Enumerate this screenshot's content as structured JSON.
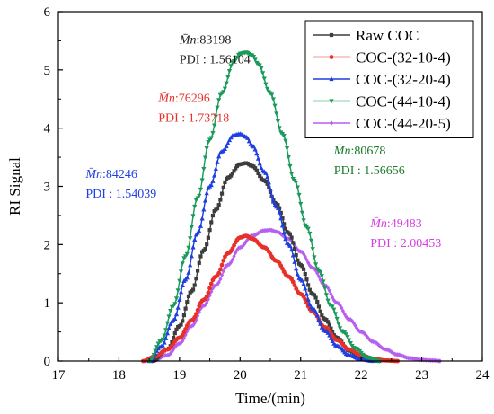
{
  "chart_data": {
    "type": "line",
    "xlabel": "Time/(min)",
    "ylabel": "RI Signal",
    "xlim": [
      17,
      24
    ],
    "ylim": [
      0,
      6
    ],
    "x_ticks": [
      17,
      18,
      19,
      20,
      21,
      22,
      23,
      24
    ],
    "y_ticks": [
      0,
      1,
      2,
      3,
      4,
      5,
      6
    ],
    "grid": false,
    "legend_position": "top-right",
    "series": [
      {
        "name": "Raw COC",
        "color": "#3d3d3d",
        "marker": "square",
        "x": [
          18.55,
          18.8,
          19.0,
          19.2,
          19.4,
          19.6,
          19.8,
          20.0,
          20.1,
          20.2,
          20.4,
          20.6,
          20.8,
          21.0,
          21.2,
          21.4,
          21.6,
          21.8,
          22.0,
          22.2,
          22.3
        ],
        "y": [
          0.0,
          0.2,
          0.6,
          1.2,
          1.9,
          2.6,
          3.15,
          3.38,
          3.4,
          3.35,
          3.1,
          2.7,
          2.2,
          1.65,
          1.15,
          0.72,
          0.4,
          0.18,
          0.06,
          0.01,
          0.0
        ]
      },
      {
        "name": "COC-(32-10-4)",
        "color": "#e8302a",
        "marker": "circle",
        "x": [
          18.4,
          18.6,
          18.8,
          19.0,
          19.2,
          19.4,
          19.6,
          19.8,
          20.0,
          20.1,
          20.2,
          20.4,
          20.6,
          20.8,
          21.0,
          21.2,
          21.4,
          21.6,
          21.8,
          22.0,
          22.2,
          22.4,
          22.6
        ],
        "y": [
          0.0,
          0.08,
          0.2,
          0.4,
          0.7,
          1.05,
          1.45,
          1.85,
          2.12,
          2.15,
          2.1,
          1.95,
          1.72,
          1.45,
          1.15,
          0.85,
          0.58,
          0.36,
          0.2,
          0.1,
          0.04,
          0.01,
          0.0
        ]
      },
      {
        "name": "COC-(32-20-4)",
        "color": "#1f3fe0",
        "marker": "triangle-up",
        "x": [
          18.5,
          18.7,
          18.9,
          19.1,
          19.3,
          19.5,
          19.7,
          19.9,
          20.0,
          20.1,
          20.2,
          20.4,
          20.6,
          20.8,
          21.0,
          21.2,
          21.4,
          21.6,
          21.8,
          22.0,
          22.2
        ],
        "y": [
          0.0,
          0.25,
          0.7,
          1.4,
          2.2,
          3.0,
          3.6,
          3.88,
          3.9,
          3.85,
          3.7,
          3.25,
          2.65,
          2.0,
          1.4,
          0.9,
          0.52,
          0.26,
          0.1,
          0.03,
          0.0
        ]
      },
      {
        "name": "COC-(44-10-4)",
        "color": "#1a9a5a",
        "marker": "triangle-down",
        "x": [
          18.5,
          18.7,
          18.9,
          19.1,
          19.3,
          19.5,
          19.7,
          19.9,
          20.0,
          20.1,
          20.2,
          20.3,
          20.5,
          20.7,
          20.9,
          21.1,
          21.3,
          21.5,
          21.7,
          21.9,
          22.1,
          22.3
        ],
        "y": [
          0.0,
          0.35,
          0.95,
          1.8,
          2.8,
          3.8,
          4.6,
          5.15,
          5.28,
          5.3,
          5.25,
          5.1,
          4.6,
          3.9,
          3.1,
          2.3,
          1.55,
          0.95,
          0.5,
          0.22,
          0.06,
          0.0
        ]
      },
      {
        "name": "COC-(44-20-5)",
        "color": "#b65ff0",
        "marker": "diamond",
        "x": [
          18.55,
          18.8,
          19.0,
          19.2,
          19.4,
          19.6,
          19.8,
          20.0,
          20.2,
          20.4,
          20.5,
          20.6,
          20.8,
          21.0,
          21.2,
          21.4,
          21.6,
          21.8,
          22.0,
          22.2,
          22.4,
          22.6,
          22.8,
          23.0,
          23.2,
          23.3
        ],
        "y": [
          0.0,
          0.1,
          0.3,
          0.6,
          0.95,
          1.3,
          1.65,
          1.95,
          2.15,
          2.24,
          2.25,
          2.22,
          2.1,
          1.88,
          1.6,
          1.3,
          1.0,
          0.72,
          0.5,
          0.33,
          0.2,
          0.11,
          0.05,
          0.02,
          0.01,
          0.0
        ]
      }
    ],
    "annotations": [
      {
        "mn_label": "M̄n",
        "mn_value": ":83198",
        "pdi": "PDI : 1.56104",
        "color": "#1a1a1a",
        "at": [
          19.0,
          5.45
        ]
      },
      {
        "mn_label": "M̄n",
        "mn_value": ":76296",
        "pdi": "PDI : 1.73718",
        "color": "#e8302a",
        "at": [
          18.65,
          4.45
        ]
      },
      {
        "mn_label": "M̄n",
        "mn_value": ":84246",
        "pdi": "PDI : 1.54039",
        "color": "#1f3fe0",
        "at": [
          17.45,
          3.15
        ]
      },
      {
        "mn_label": "M̄n",
        "mn_value": ":80678",
        "pdi": "PDI : 1.56656",
        "color": "#1a7a2a",
        "at": [
          21.55,
          3.55
        ]
      },
      {
        "mn_label": "M̄n",
        "mn_value": ":49483",
        "pdi": "PDI : 2.00453",
        "color": "#d63fe0",
        "at": [
          22.15,
          2.3
        ]
      }
    ]
  }
}
